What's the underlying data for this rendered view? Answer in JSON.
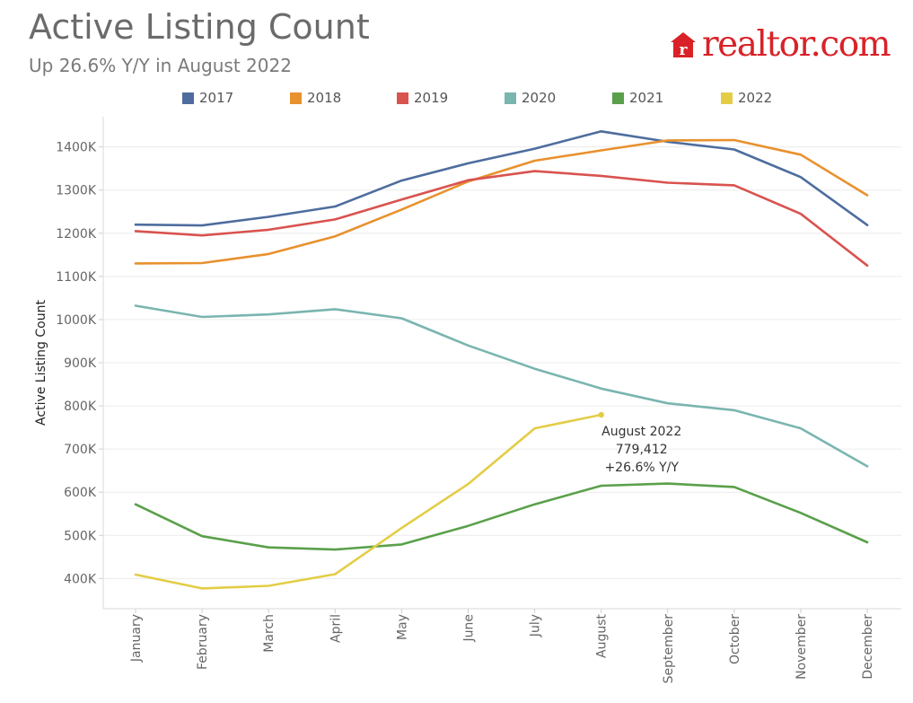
{
  "header": {
    "title": "Active Listing Count",
    "subtitle": "Up 26.6% Y/Y in August 2022"
  },
  "logo": {
    "text": "realtor.com",
    "color": "#d92228"
  },
  "chart_data": {
    "type": "line",
    "title": "Active Listing Count",
    "subtitle": "Up 26.6% Y/Y in August 2022",
    "xlabel": "",
    "ylabel": "Active Listing Count",
    "categories": [
      "January",
      "February",
      "March",
      "April",
      "May",
      "June",
      "July",
      "August",
      "September",
      "October",
      "November",
      "December"
    ],
    "ylim": [
      330000,
      1470000
    ],
    "yticks": [
      400000,
      500000,
      600000,
      700000,
      800000,
      900000,
      1000000,
      1100000,
      1200000,
      1300000,
      1400000
    ],
    "ytick_labels": [
      "400K",
      "500K",
      "600K",
      "700K",
      "800K",
      "900K",
      "1000K",
      "1100K",
      "1200K",
      "1300K",
      "1400K"
    ],
    "grid": true,
    "legend_position": "top",
    "series": [
      {
        "name": "2017",
        "color": "#4e6d9e",
        "values": [
          1220000,
          1218000,
          1238000,
          1262000,
          1322000,
          1362000,
          1396000,
          1436000,
          1412000,
          1394000,
          1330000,
          1219000
        ]
      },
      {
        "name": "2018",
        "color": "#e8912e",
        "values": [
          1130000,
          1131000,
          1152000,
          1193000,
          1255000,
          1320000,
          1368000,
          1392000,
          1415000,
          1416000,
          1382000,
          1288000
        ]
      },
      {
        "name": "2019",
        "color": "#d9534f",
        "values": [
          1205000,
          1195000,
          1208000,
          1232000,
          1278000,
          1323000,
          1344000,
          1333000,
          1317000,
          1311000,
          1245000,
          1125000
        ]
      },
      {
        "name": "2020",
        "color": "#7ab5b0",
        "values": [
          1032000,
          1006000,
          1012000,
          1024000,
          1003000,
          940000,
          886000,
          840000,
          806000,
          790000,
          748000,
          660000
        ]
      },
      {
        "name": "2021",
        "color": "#5aa04a",
        "values": [
          572000,
          498000,
          472000,
          467000,
          479000,
          522000,
          572000,
          615000,
          620000,
          612000,
          552000,
          484000
        ]
      },
      {
        "name": "2022",
        "color": "#e3cd46",
        "values": [
          409000,
          377000,
          383000,
          410000,
          517000,
          619000,
          748000,
          779412,
          null,
          null,
          null,
          null
        ]
      }
    ],
    "annotation": {
      "series": "2022",
      "category": "August",
      "lines": [
        "August 2022",
        "779,412",
        "+26.6% Y/Y"
      ]
    }
  }
}
